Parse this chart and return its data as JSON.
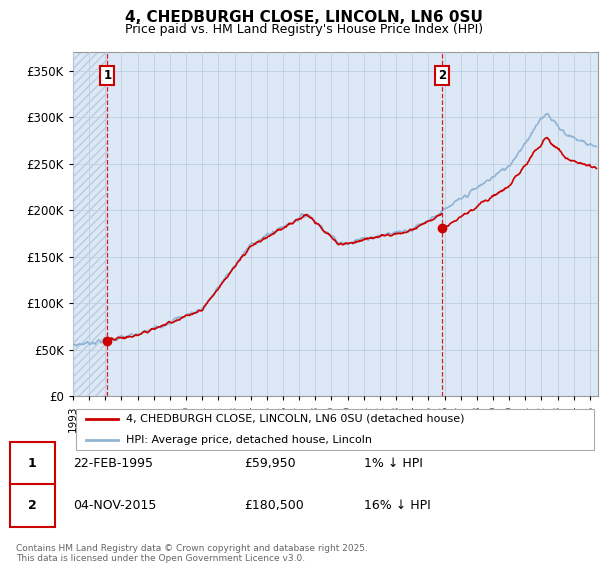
{
  "title": "4, CHEDBURGH CLOSE, LINCOLN, LN6 0SU",
  "subtitle": "Price paid vs. HM Land Registry's House Price Index (HPI)",
  "ylim": [
    0,
    370000
  ],
  "yticks": [
    0,
    50000,
    100000,
    150000,
    200000,
    250000,
    300000,
    350000
  ],
  "ytick_labels": [
    "£0",
    "£50K",
    "£100K",
    "£150K",
    "£200K",
    "£250K",
    "£300K",
    "£350K"
  ],
  "xlim_start": 1993.0,
  "xlim_end": 2025.5,
  "xticks": [
    1993,
    1994,
    1995,
    1996,
    1997,
    1998,
    1999,
    2000,
    2001,
    2002,
    2003,
    2004,
    2005,
    2006,
    2007,
    2008,
    2009,
    2010,
    2011,
    2012,
    2013,
    2014,
    2015,
    2016,
    2017,
    2018,
    2019,
    2020,
    2021,
    2022,
    2023,
    2024,
    2025
  ],
  "hpi_color": "#92b4d4",
  "price_color": "#cc0000",
  "marker1_date": 1995.13,
  "marker1_price": 59950,
  "marker2_date": 2015.84,
  "marker2_price": 180500,
  "legend_line1": "4, CHEDBURGH CLOSE, LINCOLN, LN6 0SU (detached house)",
  "legend_line2": "HPI: Average price, detached house, Lincoln",
  "footnote": "Contains HM Land Registry data © Crown copyright and database right 2025.\nThis data is licensed under the Open Government Licence v3.0.",
  "table": [
    {
      "num": "1",
      "date": "22-FEB-1995",
      "price": "£59,950",
      "hpi": "1% ↓ HPI"
    },
    {
      "num": "2",
      "date": "04-NOV-2015",
      "price": "£180,500",
      "hpi": "16% ↓ HPI"
    }
  ],
  "bg_color": "#dce8f5",
  "hatch_color": "#b8cce0",
  "grid_color": "#c0cfe0"
}
